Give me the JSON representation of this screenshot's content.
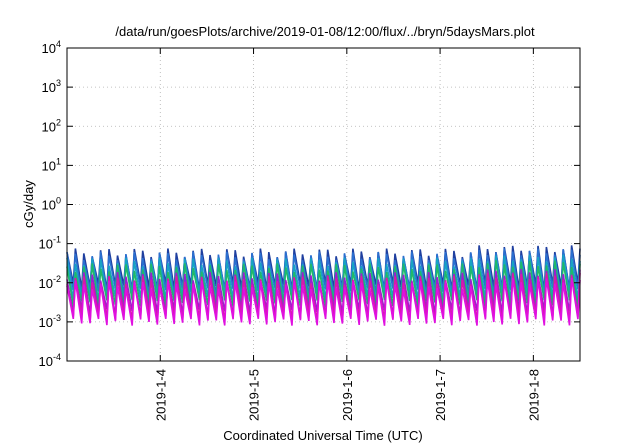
{
  "chart_data": {
    "type": "line",
    "title": "/data/run/goesPlots/archive/2019-01-08/12:00/flux/../bryn/5daysMars.plot",
    "xlabel": "Coordinated Universal Time (UTC)",
    "ylabel": "cGy/day",
    "yscale": "log",
    "ylim": [
      0.0001,
      10000
    ],
    "y_ticks": [
      {
        "value": 0.0001,
        "base": "10",
        "exp": "-4"
      },
      {
        "value": 0.001,
        "base": "10",
        "exp": "-3"
      },
      {
        "value": 0.01,
        "base": "10",
        "exp": "-2"
      },
      {
        "value": 0.1,
        "base": "10",
        "exp": "-1"
      },
      {
        "value": 1,
        "base": "10",
        "exp": "0"
      },
      {
        "value": 10,
        "base": "10",
        "exp": "1"
      },
      {
        "value": 100,
        "base": "10",
        "exp": "2"
      },
      {
        "value": 1000,
        "base": "10",
        "exp": "3"
      },
      {
        "value": 10000,
        "base": "10",
        "exp": "4"
      }
    ],
    "xlim": [
      "2019-01-03",
      "2019-01-08T12:00"
    ],
    "x_ticks": [
      {
        "value": "2019-01-04",
        "label": "2019-1-4"
      },
      {
        "value": "2019-01-05",
        "label": "2019-1-5"
      },
      {
        "value": "2019-01-06",
        "label": "2019-1-6"
      },
      {
        "value": "2019-01-07",
        "label": "2019-1-7"
      },
      {
        "value": "2019-01-08",
        "label": "2019-1-8"
      }
    ],
    "grid": true,
    "legend": "none",
    "sawtooth_peaks_per_day": 11,
    "series": [
      {
        "color": "#1f3f9f",
        "peak": 0.06,
        "trough": 0.008
      },
      {
        "color": "#2a6fd0",
        "peak": 0.05,
        "trough": 0.006
      },
      {
        "color": "#17a3c4",
        "peak": 0.035,
        "trough": 0.004
      },
      {
        "color": "#20b86a",
        "peak": 0.025,
        "trough": 0.003
      },
      {
        "color": "#9a1fd0",
        "peak": 0.015,
        "trough": 0.0018
      },
      {
        "color": "#d81aa8",
        "peak": 0.012,
        "trough": 0.0013
      },
      {
        "color": "#e010e0",
        "peak": 0.009,
        "trough": 0.001
      }
    ]
  }
}
